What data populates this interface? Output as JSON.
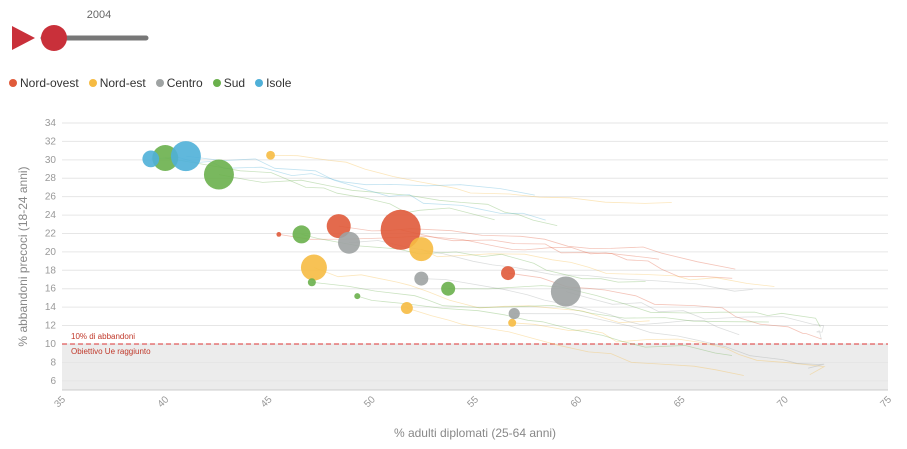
{
  "player": {
    "year_label": "2004",
    "progress": 0.0,
    "play_icon": "play-icon"
  },
  "legend": [
    {
      "name": "Nord-ovest",
      "color": "#e05a3a"
    },
    {
      "name": "Nord-est",
      "color": "#f6bb42"
    },
    {
      "name": "Centro",
      "color": "#9fa3a3"
    },
    {
      "name": "Sud",
      "color": "#6ab04c"
    },
    {
      "name": "Isole",
      "color": "#4fb0d8"
    }
  ],
  "reference": {
    "value": 10,
    "label_above": "10% di abbandoni",
    "label_below": "Obiettivo Ue raggiunto",
    "color": "#e05a5a"
  },
  "chart_data": {
    "type": "scatter",
    "xlabel": "% adulti diplomati (25-64 anni)",
    "ylabel": "% abbandoni precoci (18-24 anni)",
    "xlim": [
      35,
      75
    ],
    "ylim": [
      5,
      34
    ],
    "xticks": [
      35,
      40,
      45,
      50,
      55,
      60,
      65,
      70,
      75
    ],
    "yticks": [
      6,
      8,
      10,
      12,
      14,
      16,
      18,
      20,
      22,
      24,
      26,
      28,
      30,
      32,
      34
    ],
    "series": [
      {
        "name": "Nord-ovest",
        "color": "#e05a3a",
        "points": [
          {
            "x": 51.4,
            "y": 22.4,
            "size": 10
          },
          {
            "x": 48.4,
            "y": 22.8,
            "size": 6
          },
          {
            "x": 56.6,
            "y": 17.7,
            "size": 3.5
          },
          {
            "x": 45.5,
            "y": 21.9,
            "size": 1.2
          }
        ]
      },
      {
        "name": "Nord-est",
        "color": "#f6bb42",
        "points": [
          {
            "x": 52.4,
            "y": 20.3,
            "size": 6
          },
          {
            "x": 47.2,
            "y": 18.3,
            "size": 6.5
          },
          {
            "x": 45.1,
            "y": 30.5,
            "size": 2.2
          },
          {
            "x": 51.7,
            "y": 13.9,
            "size": 3
          },
          {
            "x": 56.8,
            "y": 12.3,
            "size": 2
          }
        ]
      },
      {
        "name": "Centro",
        "color": "#9fa3a3",
        "points": [
          {
            "x": 59.4,
            "y": 15.7,
            "size": 7.5
          },
          {
            "x": 48.9,
            "y": 21.0,
            "size": 5.5
          },
          {
            "x": 52.4,
            "y": 17.1,
            "size": 3.5
          },
          {
            "x": 56.9,
            "y": 13.3,
            "size": 2.8
          }
        ]
      },
      {
        "name": "Sud",
        "color": "#6ab04c",
        "points": [
          {
            "x": 42.6,
            "y": 28.4,
            "size": 7.5
          },
          {
            "x": 40.0,
            "y": 30.2,
            "size": 6.5
          },
          {
            "x": 46.6,
            "y": 21.9,
            "size": 4.5
          },
          {
            "x": 53.7,
            "y": 16.0,
            "size": 3.5
          },
          {
            "x": 47.1,
            "y": 16.7,
            "size": 2
          },
          {
            "x": 49.3,
            "y": 15.2,
            "size": 1.5
          }
        ]
      },
      {
        "name": "Isole",
        "color": "#4fb0d8",
        "points": [
          {
            "x": 41.0,
            "y": 30.4,
            "size": 7.5
          },
          {
            "x": 39.3,
            "y": 30.1,
            "size": 4.2
          }
        ]
      }
    ]
  }
}
